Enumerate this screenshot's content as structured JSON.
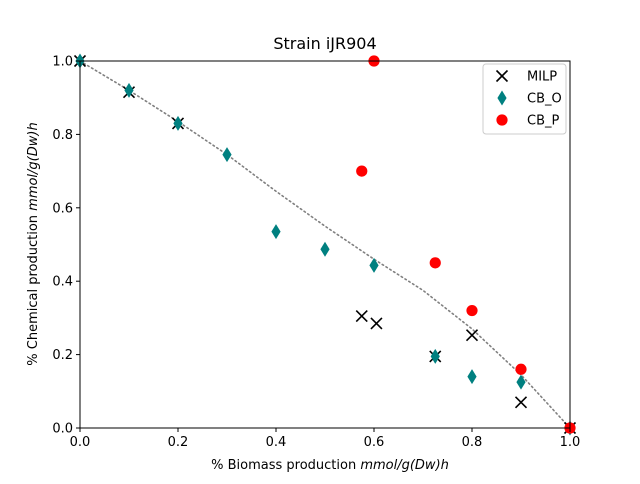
{
  "chart_data": {
    "type": "scatter",
    "title": "Strain iJR904",
    "xlabel_prefix": "% Biomass production ",
    "xlabel_unit": "mmol/g(Dw)h",
    "ylabel_prefix": "% Chemical production ",
    "ylabel_unit": "mmol/g(Dw)h",
    "xlim": [
      0.0,
      1.0
    ],
    "ylim": [
      0.0,
      1.0
    ],
    "xticks": [
      "0.0",
      "0.2",
      "0.4",
      "0.6",
      "0.8",
      "1.0"
    ],
    "yticks": [
      "0.0",
      "0.2",
      "0.4",
      "0.6",
      "0.8",
      "1.0"
    ],
    "grid": false,
    "legend_position": "top-right",
    "trend_line": {
      "style": "dotted",
      "color": "#808080",
      "x": [
        0.0,
        0.1,
        0.2,
        0.3,
        0.4,
        0.5,
        0.6,
        0.7,
        0.8,
        0.9,
        1.0
      ],
      "y": [
        1.0,
        0.92,
        0.835,
        0.745,
        0.645,
        0.55,
        0.46,
        0.375,
        0.27,
        0.145,
        0.0
      ]
    },
    "series": [
      {
        "name": "MILP",
        "marker": "x",
        "color": "#000000",
        "points": [
          [
            0.0,
            1.0
          ],
          [
            0.1,
            0.915
          ],
          [
            0.2,
            0.83
          ],
          [
            0.575,
            0.305
          ],
          [
            0.605,
            0.285
          ],
          [
            0.725,
            0.195
          ],
          [
            0.8,
            0.253
          ],
          [
            0.9,
            0.07
          ],
          [
            1.0,
            0.0
          ]
        ]
      },
      {
        "name": "CB_O",
        "marker": "diamond",
        "color": "#008080",
        "points": [
          [
            0.0,
            1.0
          ],
          [
            0.1,
            0.92
          ],
          [
            0.2,
            0.83
          ],
          [
            0.3,
            0.745
          ],
          [
            0.4,
            0.535
          ],
          [
            0.5,
            0.487
          ],
          [
            0.6,
            0.443
          ],
          [
            0.725,
            0.195
          ],
          [
            0.8,
            0.14
          ],
          [
            0.9,
            0.125
          ],
          [
            1.0,
            0.0
          ]
        ]
      },
      {
        "name": "CB_P",
        "marker": "circle",
        "color": "#ff0000",
        "points": [
          [
            0.575,
            0.7
          ],
          [
            0.6,
            1.0
          ],
          [
            0.725,
            0.45
          ],
          [
            0.8,
            0.32
          ],
          [
            0.9,
            0.16
          ],
          [
            1.0,
            0.0
          ]
        ]
      }
    ]
  }
}
